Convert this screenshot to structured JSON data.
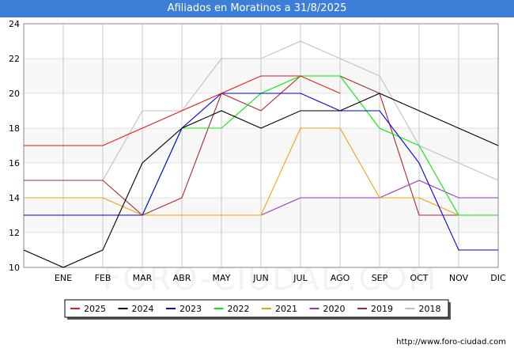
{
  "header": {
    "title": "Afiliados en Moratinos a 31/8/2025"
  },
  "footer": {
    "url": "http://www.foro-ciudad.com"
  },
  "watermark": "FORO-CIUDAD.COM",
  "chart_data": {
    "type": "line",
    "title": "Afiliados en Moratinos a 31/8/2025",
    "categories": [
      "",
      "ENE",
      "FEB",
      "MAR",
      "ABR",
      "MAY",
      "JUN",
      "JUL",
      "AGO",
      "SEP",
      "OCT",
      "NOV",
      "DIC"
    ],
    "ylim": [
      10,
      24
    ],
    "yticks": [
      10,
      12,
      14,
      16,
      18,
      20,
      22,
      24
    ],
    "grid": true,
    "legend_position": "bottom",
    "series": [
      {
        "name": "2025",
        "color": "#e31a1c",
        "values": [
          17,
          17,
          17,
          18,
          19,
          20,
          21,
          21,
          20,
          null,
          null,
          null,
          null
        ]
      },
      {
        "name": "2024",
        "color": "#000000",
        "values": [
          11,
          10,
          11,
          16,
          18,
          19,
          18,
          19,
          19,
          20,
          19,
          18,
          17
        ]
      },
      {
        "name": "2023",
        "color": "#0000ee",
        "values": [
          13,
          13,
          13,
          13,
          18,
          20,
          20,
          20,
          19,
          19,
          16,
          11,
          11
        ]
      },
      {
        "name": "2022",
        "color": "#00ee00",
        "values": [
          13,
          13,
          13,
          13,
          18,
          18,
          20,
          21,
          21,
          18,
          17,
          13,
          13
        ]
      },
      {
        "name": "2021",
        "color": "#f0a30a",
        "values": [
          14,
          14,
          14,
          13,
          13,
          13,
          13,
          18,
          18,
          14,
          14,
          13,
          13
        ]
      },
      {
        "name": "2020",
        "color": "#9932cc",
        "values": [
          13,
          13,
          13,
          13,
          13,
          13,
          13,
          14,
          14,
          14,
          15,
          14,
          14
        ]
      },
      {
        "name": "2019",
        "color": "#a52a2a",
        "values": [
          15,
          15,
          15,
          13,
          14,
          20,
          19,
          21,
          21,
          20,
          13,
          13,
          13
        ]
      },
      {
        "name": "2018",
        "color": "#c0c0c0",
        "values": [
          15,
          15,
          15,
          19,
          19,
          22,
          22,
          23,
          22,
          21,
          17,
          16,
          15
        ]
      }
    ]
  }
}
